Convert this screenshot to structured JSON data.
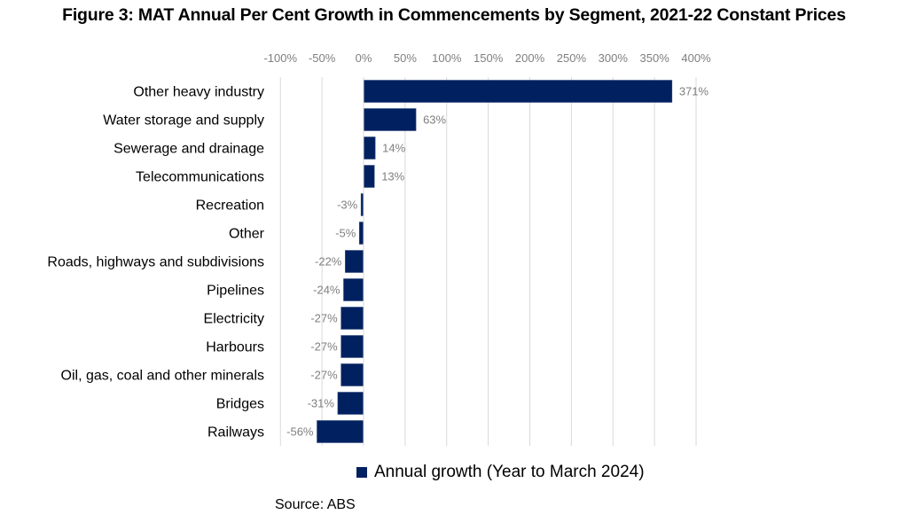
{
  "chart_data": {
    "type": "bar",
    "orientation": "horizontal",
    "title": "Figure 3: MAT Annual Per Cent Growth in Commencements by Segment, 2021-22 Constant Prices",
    "xlabel": "",
    "ylabel": "",
    "xlim": [
      -100,
      400
    ],
    "xticks": [
      -100,
      -50,
      0,
      50,
      100,
      150,
      200,
      250,
      300,
      350,
      400
    ],
    "xtick_labels": [
      "-100%",
      "-50%",
      "0%",
      "50%",
      "100%",
      "150%",
      "200%",
      "250%",
      "300%",
      "350%",
      "400%"
    ],
    "x_axis_position": "top",
    "grid": true,
    "categories": [
      "Other heavy industry",
      "Water storage and supply",
      "Sewerage and drainage",
      "Telecommunications",
      "Recreation",
      "Other",
      "Roads, highways and subdivisions",
      "Pipelines",
      "Electricity",
      "Harbours",
      "Oil, gas, coal and other minerals",
      "Bridges",
      "Railways"
    ],
    "series": [
      {
        "name": "Annual growth (Year to March 2024)",
        "color": "#002060",
        "values": [
          371,
          63,
          14,
          13,
          -3,
          -5,
          -22,
          -24,
          -27,
          -27,
          -27,
          -31,
          -56
        ],
        "labels": [
          "371%",
          "63%",
          "14%",
          "13%",
          "-3%",
          "-5%",
          "-22%",
          "-24%",
          "-27%",
          "-27%",
          "-27%",
          "-31%",
          "-56%"
        ]
      }
    ],
    "legend": {
      "position": "bottom",
      "entries": [
        "Annual growth (Year to March 2024)"
      ]
    },
    "source": "Source: ABS"
  },
  "colors": {
    "bar": "#002060",
    "grid": "#d9d9d9",
    "tick_text": "#7f7f7f"
  }
}
